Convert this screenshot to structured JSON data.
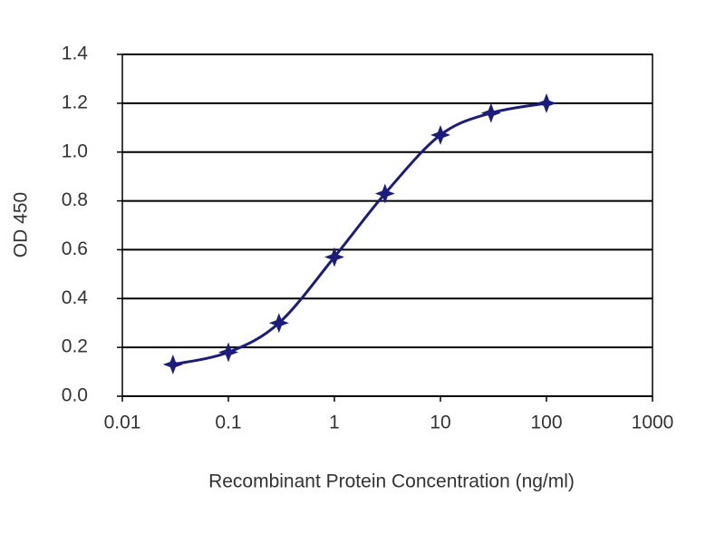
{
  "chart_data": {
    "type": "line",
    "x_label": "Recombinant Protein Concentration (ng/ml)",
    "y_label": "OD 450",
    "x": [
      0.03,
      0.1,
      0.3,
      1,
      3,
      10,
      30,
      100
    ],
    "series": [
      {
        "name": "OD 450",
        "color": "#1c1c7c",
        "values": [
          0.13,
          0.18,
          0.3,
          0.57,
          0.83,
          1.07,
          1.16,
          1.2
        ]
      }
    ],
    "xscale": "log",
    "xlim": [
      0.01,
      1000
    ],
    "xticks": [
      0.01,
      0.1,
      1,
      10,
      100,
      1000
    ],
    "ylim": [
      0,
      1.4
    ],
    "yticks": [
      {
        "value": 0,
        "label": "0.0"
      },
      0.2,
      0.4,
      0.6,
      0.8,
      {
        "value": 1,
        "label": "1.0"
      },
      1.2,
      1.4
    ],
    "grid": true
  }
}
